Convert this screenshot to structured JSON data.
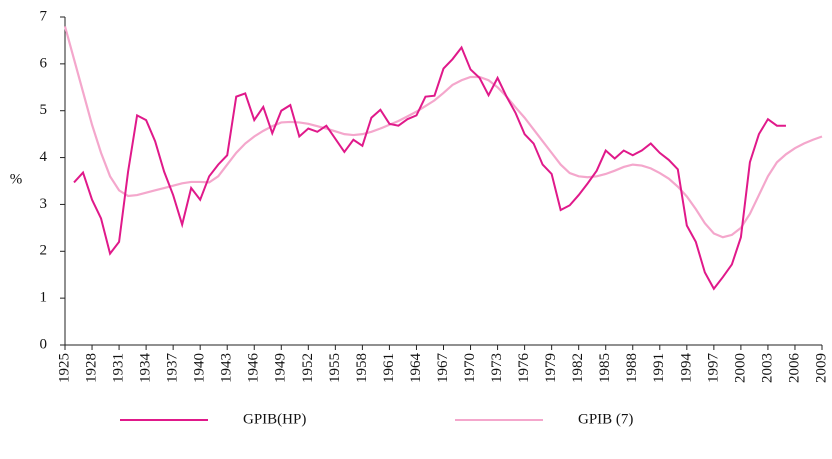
{
  "chart_data": {
    "type": "line",
    "y_label": "%",
    "xlim": [
      1925,
      2009
    ],
    "ylim": [
      0,
      7
    ],
    "xticks": [
      1925,
      1928,
      1931,
      1934,
      1937,
      1940,
      1943,
      1946,
      1949,
      1952,
      1955,
      1958,
      1961,
      1964,
      1967,
      1970,
      1973,
      1976,
      1979,
      1982,
      1985,
      1988,
      1991,
      1994,
      1997,
      2000,
      2003,
      2006,
      2009
    ],
    "yticks": [
      0,
      1,
      2,
      3,
      4,
      5,
      6,
      7
    ],
    "series": [
      {
        "name": "GPIB(HP)",
        "color": "#e0198a",
        "x": [
          1926,
          1927,
          1928,
          1929,
          1930,
          1931,
          1932,
          1933,
          1934,
          1935,
          1936,
          1937,
          1938,
          1939,
          1940,
          1941,
          1942,
          1943,
          1944,
          1945,
          1946,
          1947,
          1948,
          1949,
          1950,
          1951,
          1952,
          1953,
          1954,
          1955,
          1956,
          1957,
          1958,
          1959,
          1960,
          1961,
          1962,
          1963,
          1964,
          1965,
          1966,
          1967,
          1968,
          1969,
          1970,
          1971,
          1972,
          1973,
          1974,
          1975,
          1976,
          1977,
          1978,
          1979,
          1980,
          1981,
          1982,
          1983,
          1984,
          1985,
          1986,
          1987,
          1988,
          1989,
          1990,
          1991,
          1992,
          1993,
          1994,
          1995,
          1996,
          1997,
          1998,
          1999,
          2000,
          2001,
          2002,
          2003,
          2004,
          2005
        ],
        "values": [
          3.47,
          3.68,
          3.1,
          2.7,
          1.95,
          2.2,
          3.7,
          4.9,
          4.8,
          4.35,
          3.7,
          3.2,
          2.57,
          3.35,
          3.1,
          3.6,
          3.85,
          4.05,
          5.3,
          5.37,
          4.8,
          5.08,
          4.52,
          5.0,
          5.12,
          4.45,
          4.62,
          4.55,
          4.68,
          4.4,
          4.12,
          4.38,
          4.25,
          4.85,
          5.02,
          4.72,
          4.68,
          4.82,
          4.9,
          5.3,
          5.32,
          5.9,
          6.1,
          6.35,
          5.88,
          5.7,
          5.33,
          5.7,
          5.3,
          4.95,
          4.5,
          4.3,
          3.85,
          3.65,
          2.88,
          2.98,
          3.2,
          3.45,
          3.72,
          4.15,
          3.98,
          4.15,
          4.05,
          4.15,
          4.3,
          4.1,
          3.95,
          3.75,
          2.55,
          2.2,
          1.55,
          1.2,
          1.45,
          1.72,
          2.3,
          3.9,
          4.5,
          4.82,
          4.68,
          4.68
        ]
      },
      {
        "name": "GPIB (7)",
        "color": "#f4a7cc",
        "x": [
          1925,
          1926,
          1927,
          1928,
          1929,
          1930,
          1931,
          1932,
          1933,
          1934,
          1935,
          1936,
          1937,
          1938,
          1939,
          1940,
          1941,
          1942,
          1943,
          1944,
          1945,
          1946,
          1947,
          1948,
          1949,
          1950,
          1951,
          1952,
          1953,
          1954,
          1955,
          1956,
          1957,
          1958,
          1959,
          1960,
          1961,
          1962,
          1963,
          1964,
          1965,
          1966,
          1967,
          1968,
          1969,
          1970,
          1971,
          1972,
          1973,
          1974,
          1975,
          1976,
          1977,
          1978,
          1979,
          1980,
          1981,
          1982,
          1983,
          1984,
          1985,
          1986,
          1987,
          1988,
          1989,
          1990,
          1991,
          1992,
          1993,
          1994,
          1995,
          1996,
          1997,
          1998,
          1999,
          2000,
          2001,
          2002,
          2003,
          2004,
          2005,
          2006,
          2007,
          2008,
          2009
        ],
        "values": [
          6.8,
          6.1,
          5.4,
          4.7,
          4.1,
          3.6,
          3.3,
          3.18,
          3.2,
          3.25,
          3.3,
          3.35,
          3.4,
          3.45,
          3.48,
          3.48,
          3.47,
          3.6,
          3.85,
          4.1,
          4.3,
          4.45,
          4.57,
          4.67,
          4.75,
          4.76,
          4.75,
          4.72,
          4.67,
          4.62,
          4.56,
          4.5,
          4.48,
          4.5,
          4.55,
          4.62,
          4.7,
          4.78,
          4.88,
          4.98,
          5.1,
          5.22,
          5.38,
          5.55,
          5.65,
          5.72,
          5.72,
          5.65,
          5.5,
          5.3,
          5.07,
          4.85,
          4.6,
          4.35,
          4.1,
          3.85,
          3.67,
          3.6,
          3.58,
          3.6,
          3.65,
          3.72,
          3.8,
          3.85,
          3.83,
          3.77,
          3.67,
          3.55,
          3.38,
          3.17,
          2.9,
          2.6,
          2.38,
          2.3,
          2.35,
          2.5,
          2.8,
          3.2,
          3.6,
          3.9,
          4.07,
          4.2,
          4.3,
          4.38,
          4.45
        ]
      }
    ]
  }
}
